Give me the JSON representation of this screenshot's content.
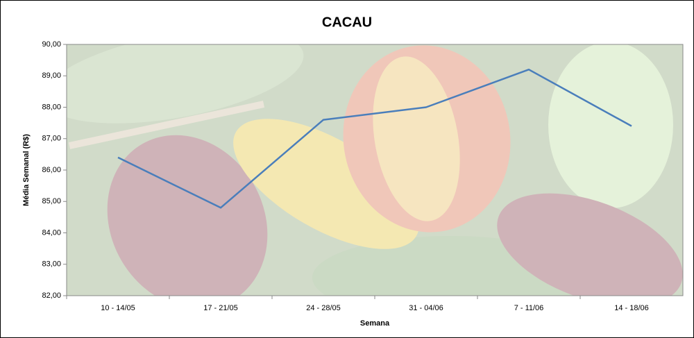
{
  "chart_data": {
    "type": "line",
    "title": "CACAU",
    "x_label": "Semana",
    "y_label": "Média Semanal (R$)",
    "categories": [
      "10 - 14/05",
      "17 - 21/05",
      "24 - 28/05",
      "31 - 04/06",
      "7 - 11/06",
      "14 - 18/06"
    ],
    "series": [
      {
        "name": "CACAU",
        "color": "#4a7ebb",
        "values": [
          86.4,
          84.8,
          87.6,
          88.0,
          89.2,
          87.4
        ]
      }
    ],
    "ylim": [
      82,
      90
    ],
    "yticks": [
      {
        "value": 82,
        "label": "82,00"
      },
      {
        "value": 83,
        "label": "83,00"
      },
      {
        "value": 84,
        "label": "84,00"
      },
      {
        "value": 85,
        "label": "85,00"
      },
      {
        "value": 86,
        "label": "86,00"
      },
      {
        "value": 87,
        "label": "87,00"
      },
      {
        "value": 88,
        "label": "88,00"
      },
      {
        "value": 89,
        "label": "89,00"
      },
      {
        "value": 90,
        "label": "90,00"
      }
    ]
  }
}
